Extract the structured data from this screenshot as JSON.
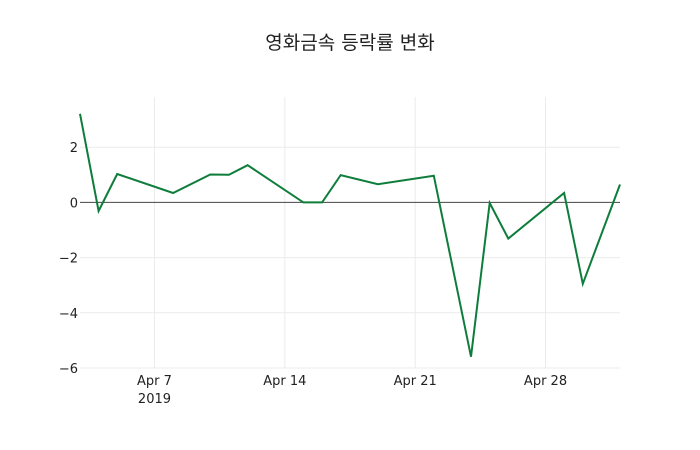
{
  "chart_data": {
    "type": "line",
    "title": "영화금속 등락률 변화",
    "xlabel": "",
    "ylabel": "",
    "x": [
      "2019-04-03",
      "2019-04-04",
      "2019-04-05",
      "2019-04-08",
      "2019-04-10",
      "2019-04-11",
      "2019-04-12",
      "2019-04-15",
      "2019-04-16",
      "2019-04-17",
      "2019-04-19",
      "2019-04-22",
      "2019-04-24",
      "2019-04-25",
      "2019-04-26",
      "2019-04-29",
      "2019-04-30",
      "2019-05-02"
    ],
    "series": [
      {
        "name": "등락률",
        "color": "#0e7d3c",
        "values": [
          3.21,
          -0.31,
          1.03,
          0.34,
          1.01,
          1.0,
          1.35,
          0.0,
          0.0,
          0.99,
          0.66,
          0.97,
          -5.59,
          -0.02,
          -1.31,
          0.34,
          -2.95,
          0.65
        ]
      }
    ],
    "x_range": [
      "2019-04-03",
      "2019-05-02"
    ],
    "ylim": [
      -6,
      3.21
    ],
    "x_ticks": [
      {
        "date": "2019-04-07",
        "label": "Apr 7",
        "sublabel": "2019"
      },
      {
        "date": "2019-04-14",
        "label": "Apr 14",
        "sublabel": ""
      },
      {
        "date": "2019-04-21",
        "label": "Apr 21",
        "sublabel": ""
      },
      {
        "date": "2019-04-28",
        "label": "Apr 28",
        "sublabel": ""
      }
    ],
    "y_ticks": [
      {
        "value": 2,
        "label": "2"
      },
      {
        "value": 0,
        "label": "0"
      },
      {
        "value": -2,
        "label": "−2"
      },
      {
        "value": -4,
        "label": "−4"
      },
      {
        "value": -6,
        "label": "−6"
      }
    ],
    "grid": true,
    "zero_line": true,
    "legend": "none"
  }
}
